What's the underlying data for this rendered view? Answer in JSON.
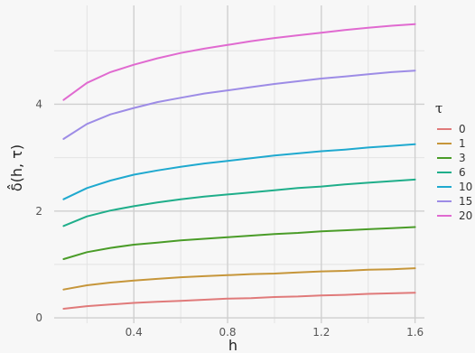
{
  "chart_data": {
    "type": "line",
    "xlabel": "h",
    "ylabel": "δ̂(h, τ)",
    "xlim": [
      0.06,
      1.64
    ],
    "ylim": [
      -0.1,
      5.85
    ],
    "x_ticks": [
      0.4,
      0.8,
      1.2,
      1.6
    ],
    "x_tick_labels": [
      "0.4",
      "0.8",
      "1.2",
      "1.6"
    ],
    "y_ticks": [
      0,
      2,
      4
    ],
    "y_tick_labels": [
      "0",
      "2",
      "4"
    ],
    "grid": true,
    "legend": {
      "title": "τ",
      "position": "right"
    },
    "x": [
      0.1,
      0.2,
      0.3,
      0.4,
      0.5,
      0.6,
      0.7,
      0.8,
      0.9,
      1.0,
      1.1,
      1.2,
      1.3,
      1.4,
      1.5,
      1.6
    ],
    "series": [
      {
        "name": "0",
        "color": "#e07a7a",
        "values": [
          0.17,
          0.22,
          0.25,
          0.28,
          0.3,
          0.32,
          0.34,
          0.36,
          0.37,
          0.39,
          0.4,
          0.42,
          0.43,
          0.45,
          0.46,
          0.47
        ]
      },
      {
        "name": "1",
        "color": "#c6963a",
        "values": [
          0.53,
          0.61,
          0.66,
          0.7,
          0.73,
          0.76,
          0.78,
          0.8,
          0.82,
          0.83,
          0.85,
          0.87,
          0.88,
          0.9,
          0.91,
          0.93
        ]
      },
      {
        "name": "3",
        "color": "#4a9c28",
        "values": [
          1.1,
          1.23,
          1.31,
          1.37,
          1.41,
          1.45,
          1.48,
          1.51,
          1.54,
          1.57,
          1.59,
          1.62,
          1.64,
          1.66,
          1.68,
          1.7
        ]
      },
      {
        "name": "6",
        "color": "#1fae8a",
        "values": [
          1.72,
          1.9,
          2.01,
          2.09,
          2.16,
          2.22,
          2.27,
          2.31,
          2.35,
          2.39,
          2.43,
          2.46,
          2.5,
          2.53,
          2.56,
          2.59
        ]
      },
      {
        "name": "10",
        "color": "#1fa9cf",
        "values": [
          2.22,
          2.43,
          2.57,
          2.68,
          2.76,
          2.83,
          2.89,
          2.94,
          2.99,
          3.04,
          3.08,
          3.12,
          3.15,
          3.19,
          3.22,
          3.25
        ]
      },
      {
        "name": "15",
        "color": "#9d8ce6",
        "values": [
          3.35,
          3.63,
          3.81,
          3.93,
          4.04,
          4.12,
          4.2,
          4.26,
          4.32,
          4.38,
          4.43,
          4.48,
          4.52,
          4.56,
          4.6,
          4.63
        ]
      },
      {
        "name": "20",
        "color": "#e06ad0",
        "values": [
          4.08,
          4.4,
          4.6,
          4.74,
          4.86,
          4.96,
          5.04,
          5.11,
          5.18,
          5.24,
          5.29,
          5.34,
          5.39,
          5.43,
          5.47,
          5.5
        ]
      }
    ]
  }
}
